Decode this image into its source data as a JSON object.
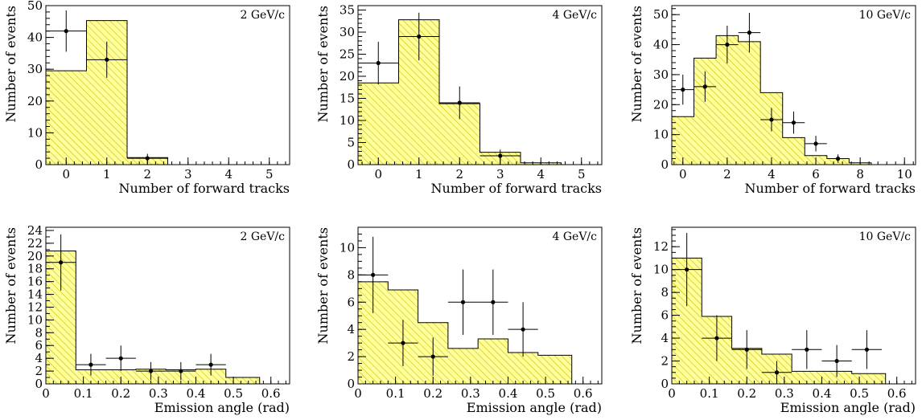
{
  "chart_data": [
    {
      "type": "bar",
      "energy": "2 GeV/c",
      "xlabel": "Number of forward tracks",
      "ylabel": "Number of events",
      "xlim": [
        -0.5,
        5.5
      ],
      "ylim": [
        0,
        50
      ],
      "xticks": [
        0,
        1,
        2,
        3,
        4,
        5
      ],
      "yticks": [
        0,
        10,
        20,
        30,
        40,
        50
      ],
      "yminor": 2,
      "hist": {
        "edges": [
          -0.5,
          0.5,
          1.5,
          2.5
        ],
        "values": [
          29.5,
          45.3,
          2.2
        ]
      },
      "points": [
        {
          "x": 0,
          "y": 42,
          "xerr": 0.5,
          "yerr": 6.5
        },
        {
          "x": 1,
          "y": 33,
          "xerr": 0.5,
          "yerr": 5.7
        },
        {
          "x": 2,
          "y": 2,
          "xerr": 0.5,
          "yerr": 1.4
        }
      ]
    },
    {
      "type": "bar",
      "energy": "4 GeV/c",
      "xlabel": "Number of forward tracks",
      "ylabel": "Number of events",
      "xlim": [
        -0.5,
        5.5
      ],
      "ylim": [
        0,
        36
      ],
      "xticks": [
        0,
        1,
        2,
        3,
        4,
        5
      ],
      "yticks": [
        0,
        5,
        10,
        15,
        20,
        25,
        30,
        35
      ],
      "yminor": 1,
      "hist": {
        "edges": [
          -0.5,
          0.5,
          1.5,
          2.5,
          3.5,
          4.5
        ],
        "values": [
          18.5,
          32.8,
          13.8,
          2.8,
          0.4
        ]
      },
      "points": [
        {
          "x": 0,
          "y": 23,
          "xerr": 0.5,
          "yerr": 4.8
        },
        {
          "x": 1,
          "y": 29,
          "xerr": 0.5,
          "yerr": 5.4
        },
        {
          "x": 2,
          "y": 14,
          "xerr": 0.5,
          "yerr": 3.7
        },
        {
          "x": 3,
          "y": 2,
          "xerr": 0.5,
          "yerr": 1.4
        }
      ]
    },
    {
      "type": "bar",
      "energy": "10 GeV/c",
      "xlabel": "Number of forward tracks",
      "ylabel": "Number of events",
      "xlim": [
        -0.5,
        10.5
      ],
      "ylim": [
        0,
        53
      ],
      "xticks": [
        0,
        2,
        4,
        6,
        8,
        10
      ],
      "yticks": [
        0,
        10,
        20,
        30,
        40,
        50
      ],
      "yminor": 2,
      "hist": {
        "edges": [
          -0.5,
          0.5,
          1.5,
          2.5,
          3.5,
          4.5,
          5.5,
          6.5,
          7.5,
          8.5
        ],
        "values": [
          16,
          35.5,
          43,
          41,
          24,
          9,
          3,
          2,
          0.6
        ]
      },
      "points": [
        {
          "x": 0,
          "y": 25,
          "xerr": 0.5,
          "yerr": 5
        },
        {
          "x": 1,
          "y": 26,
          "xerr": 0.5,
          "yerr": 5.1
        },
        {
          "x": 2,
          "y": 40,
          "xerr": 0.5,
          "yerr": 6.3
        },
        {
          "x": 3,
          "y": 44,
          "xerr": 0.5,
          "yerr": 6.6
        },
        {
          "x": 4,
          "y": 15,
          "xerr": 0.5,
          "yerr": 3.9
        },
        {
          "x": 5,
          "y": 14,
          "xerr": 0.5,
          "yerr": 3.7
        },
        {
          "x": 6,
          "y": 7,
          "xerr": 0.5,
          "yerr": 2.6
        },
        {
          "x": 7,
          "y": 2,
          "xerr": 0.5,
          "yerr": 1.4
        }
      ]
    },
    {
      "type": "bar",
      "energy": "2 GeV/c",
      "xlabel": "Emission angle (rad)",
      "ylabel": "Number of events",
      "xlim": [
        0,
        0.65
      ],
      "ylim": [
        0,
        24.5
      ],
      "xticks": [
        0,
        0.1,
        0.2,
        0.3,
        0.4,
        0.5,
        0.6
      ],
      "yticks": [
        0,
        2,
        4,
        6,
        8,
        10,
        12,
        14,
        16,
        18,
        20,
        22,
        24
      ],
      "yminor": 1,
      "hist": {
        "edges": [
          0,
          0.08,
          0.16,
          0.24,
          0.32,
          0.4,
          0.48,
          0.57
        ],
        "values": [
          20.8,
          2.2,
          2.2,
          2.3,
          2.2,
          2.3,
          1.0
        ]
      },
      "points": [
        {
          "x": 0.04,
          "y": 19,
          "xerr": 0.04,
          "yerr": 4.4
        },
        {
          "x": 0.12,
          "y": 3,
          "xerr": 0.04,
          "yerr": 1.7
        },
        {
          "x": 0.2,
          "y": 4,
          "xerr": 0.04,
          "yerr": 2
        },
        {
          "x": 0.28,
          "y": 2,
          "xerr": 0.04,
          "yerr": 1.4
        },
        {
          "x": 0.36,
          "y": 2,
          "xerr": 0.04,
          "yerr": 1.4
        },
        {
          "x": 0.44,
          "y": 3,
          "xerr": 0.04,
          "yerr": 1.7
        }
      ]
    },
    {
      "type": "bar",
      "energy": "4 GeV/c",
      "xlabel": "Emission angle (rad)",
      "ylabel": "Number of events",
      "xlim": [
        0,
        0.65
      ],
      "ylim": [
        0,
        11.5
      ],
      "xticks": [
        0,
        0.1,
        0.2,
        0.3,
        0.4,
        0.5,
        0.6
      ],
      "yticks": [
        0,
        2,
        4,
        6,
        8,
        10
      ],
      "yminor": 0.5,
      "hist": {
        "edges": [
          0,
          0.08,
          0.16,
          0.24,
          0.32,
          0.4,
          0.48,
          0.57
        ],
        "values": [
          7.5,
          6.9,
          4.5,
          2.6,
          3.3,
          2.3,
          2.1
        ]
      },
      "points": [
        {
          "x": 0.04,
          "y": 8,
          "xerr": 0.04,
          "yerr": 2.8
        },
        {
          "x": 0.12,
          "y": 3,
          "xerr": 0.04,
          "yerr": 1.7
        },
        {
          "x": 0.2,
          "y": 2,
          "xerr": 0.04,
          "yerr": 1.4
        },
        {
          "x": 0.28,
          "y": 6,
          "xerr": 0.04,
          "yerr": 2.4
        },
        {
          "x": 0.36,
          "y": 6,
          "xerr": 0.04,
          "yerr": 2.4
        },
        {
          "x": 0.44,
          "y": 4,
          "xerr": 0.04,
          "yerr": 2
        }
      ]
    },
    {
      "type": "bar",
      "energy": "10 GeV/c",
      "xlabel": "Emission angle (rad)",
      "ylabel": "Number of events",
      "xlim": [
        0,
        0.65
      ],
      "ylim": [
        0,
        13.7
      ],
      "xticks": [
        0,
        0.1,
        0.2,
        0.3,
        0.4,
        0.5,
        0.6
      ],
      "yticks": [
        0,
        2,
        4,
        6,
        8,
        10,
        12
      ],
      "yminor": 0.5,
      "hist": {
        "edges": [
          0,
          0.08,
          0.16,
          0.24,
          0.32,
          0.4,
          0.48,
          0.57
        ],
        "values": [
          11,
          5.9,
          3.1,
          2.6,
          1.1,
          1.1,
          0.9
        ]
      },
      "points": [
        {
          "x": 0.04,
          "y": 10,
          "xerr": 0.04,
          "yerr": 3.2
        },
        {
          "x": 0.12,
          "y": 4,
          "xerr": 0.04,
          "yerr": 2
        },
        {
          "x": 0.2,
          "y": 3,
          "xerr": 0.04,
          "yerr": 1.7
        },
        {
          "x": 0.28,
          "y": 1,
          "xerr": 0.04,
          "yerr": 1
        },
        {
          "x": 0.36,
          "y": 3,
          "xerr": 0.04,
          "yerr": 1.7
        },
        {
          "x": 0.44,
          "y": 2,
          "xerr": 0.04,
          "yerr": 1.4
        },
        {
          "x": 0.52,
          "y": 3,
          "xerr": 0.04,
          "yerr": 1.7
        }
      ]
    }
  ],
  "colors": {
    "fill": "#ffff99",
    "hatch": "#c8b400",
    "ink": "#000000"
  }
}
